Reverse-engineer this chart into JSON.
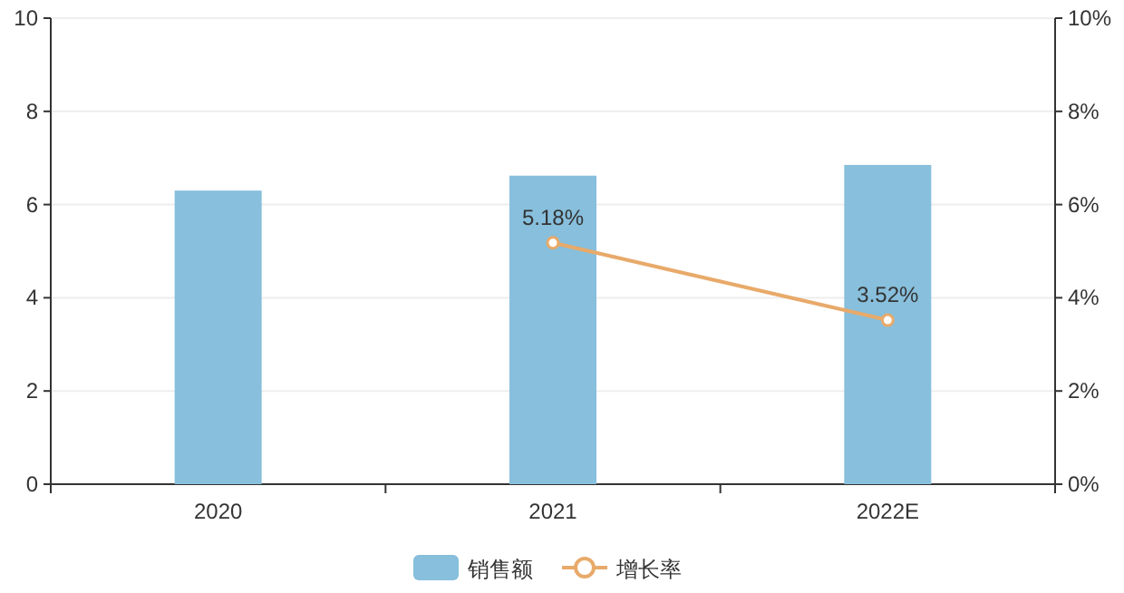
{
  "chart_data": {
    "type": "bar",
    "categories": [
      "2020",
      "2021",
      "2022E"
    ],
    "series": [
      {
        "name": "销售额",
        "color": "#87bfdc",
        "values": [
          6.3,
          6.62,
          6.85
        ]
      },
      {
        "name": "增长率",
        "type": "line",
        "axis": "y2",
        "color": "#e8aa6a",
        "values": [
          null,
          5.18,
          3.52
        ],
        "value_labels": [
          null,
          "5.18%",
          "3.52%"
        ],
        "marker": "circle"
      }
    ],
    "ylim": [
      0,
      10
    ],
    "yticks": [
      0,
      2,
      4,
      6,
      8,
      10
    ],
    "y2lim": [
      0,
      10
    ],
    "y2ticks": [
      {
        "value": 0,
        "label": "0%"
      },
      {
        "value": 2,
        "label": "2%"
      },
      {
        "value": 4,
        "label": "4%"
      },
      {
        "value": 6,
        "label": "6%"
      },
      {
        "value": 8,
        "label": "8%"
      },
      {
        "value": 10,
        "label": "10%"
      }
    ],
    "grid": "y",
    "legend": "bottom"
  }
}
